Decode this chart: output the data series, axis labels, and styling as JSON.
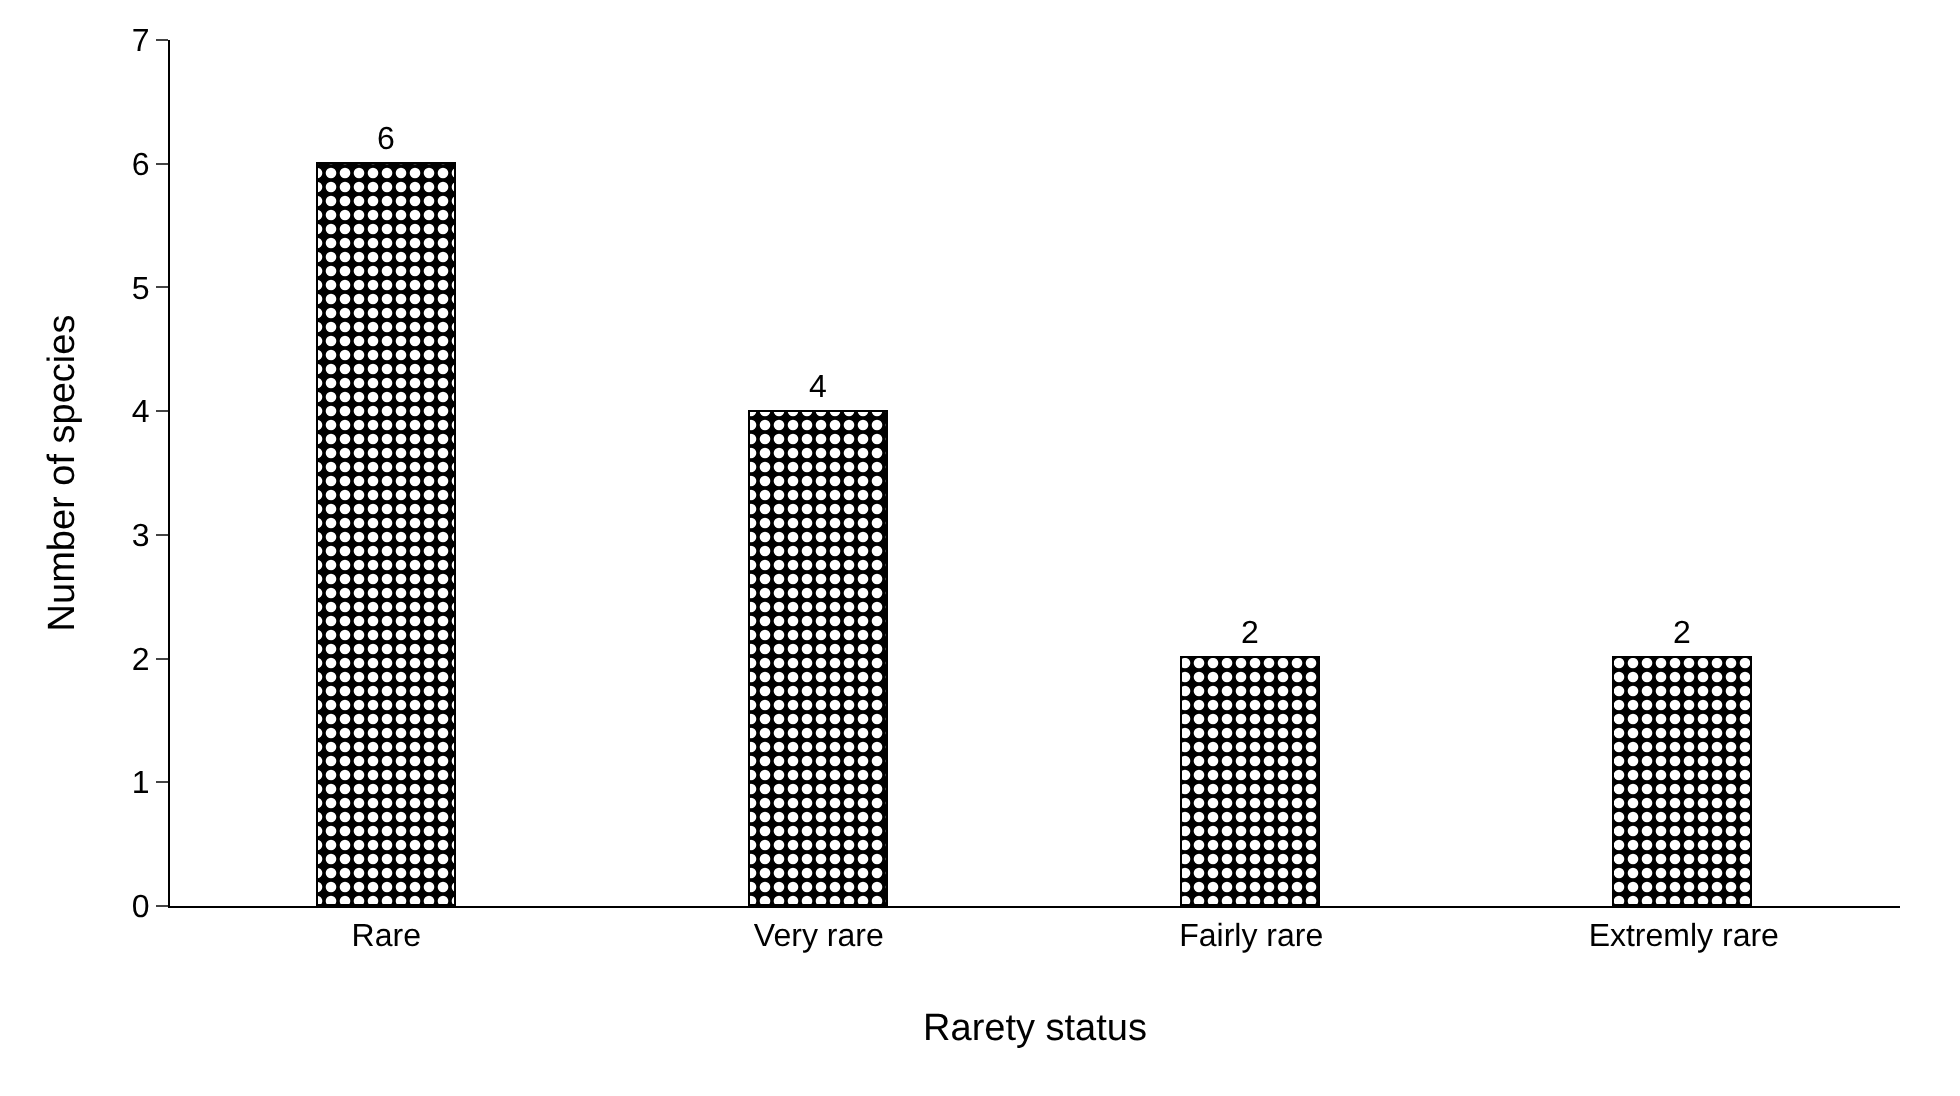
{
  "chart_data": {
    "type": "bar",
    "xlabel": "Rarety status",
    "ylabel": "Number of species",
    "categories": [
      "Rare",
      "Very rare",
      "Fairly rare",
      "Extremly rare"
    ],
    "values": [
      6,
      4,
      2,
      2
    ],
    "color": "#000000",
    "ylim": [
      0,
      7
    ],
    "yticks": [
      0,
      1,
      2,
      3,
      4,
      5,
      6,
      7
    ],
    "grid": false,
    "legend": false,
    "data_labels": true
  }
}
